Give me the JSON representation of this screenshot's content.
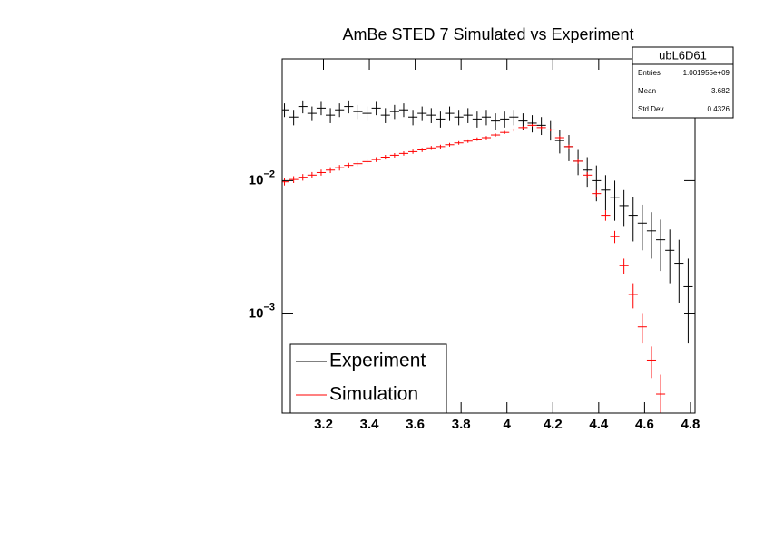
{
  "chart_data": {
    "type": "errorbar",
    "title": "AmBe STED 7 Simulated vs Experiment",
    "log_y": true,
    "legend_position": "bottom-left",
    "x": [
      3.03,
      3.07,
      3.11,
      3.15,
      3.19,
      3.23,
      3.27,
      3.31,
      3.35,
      3.39,
      3.43,
      3.47,
      3.51,
      3.55,
      3.59,
      3.63,
      3.67,
      3.71,
      3.75,
      3.79,
      3.83,
      3.87,
      3.91,
      3.95,
      3.99,
      4.03,
      4.07,
      4.11,
      4.15,
      4.19,
      4.23,
      4.27,
      4.31,
      4.35,
      4.39,
      4.43,
      4.47,
      4.51,
      4.55,
      4.59,
      4.63,
      4.67,
      4.71,
      4.75,
      4.79
    ],
    "series": [
      {
        "name": "Experiment",
        "color": "#000000",
        "values": [
          0.034,
          0.03,
          0.036,
          0.032,
          0.035,
          0.031,
          0.034,
          0.036,
          0.033,
          0.032,
          0.035,
          0.031,
          0.033,
          0.034,
          0.03,
          0.032,
          0.031,
          0.029,
          0.032,
          0.03,
          0.031,
          0.029,
          0.03,
          0.028,
          0.029,
          0.03,
          0.028,
          0.027,
          0.026,
          0.024,
          0.02,
          0.018,
          0.014,
          0.012,
          0.01,
          0.0085,
          0.0075,
          0.0065,
          0.0055,
          0.0048,
          0.0042,
          0.0036,
          0.003,
          0.0024,
          0.0016
        ],
        "errors": [
          0.004,
          0.004,
          0.004,
          0.004,
          0.004,
          0.004,
          0.004,
          0.004,
          0.004,
          0.004,
          0.004,
          0.004,
          0.004,
          0.004,
          0.004,
          0.004,
          0.004,
          0.004,
          0.004,
          0.004,
          0.004,
          0.004,
          0.004,
          0.004,
          0.004,
          0.004,
          0.004,
          0.004,
          0.004,
          0.004,
          0.004,
          0.004,
          0.003,
          0.003,
          0.003,
          0.0025,
          0.0025,
          0.002,
          0.002,
          0.0018,
          0.0016,
          0.0015,
          0.0013,
          0.0012,
          0.001
        ]
      },
      {
        "name": "Simulation",
        "color": "#ff0000",
        "values": [
          0.0098,
          0.0102,
          0.0106,
          0.011,
          0.0115,
          0.012,
          0.0125,
          0.013,
          0.0134,
          0.0139,
          0.0144,
          0.015,
          0.0155,
          0.016,
          0.0165,
          0.017,
          0.0176,
          0.018,
          0.0186,
          0.0192,
          0.0198,
          0.0205,
          0.021,
          0.022,
          0.023,
          0.024,
          0.025,
          0.026,
          0.025,
          0.024,
          0.021,
          0.018,
          0.014,
          0.011,
          0.008,
          0.0055,
          0.0038,
          0.0023,
          0.0014,
          0.0008,
          0.00045,
          0.00025,
          null,
          null,
          null
        ],
        "errors": [
          0.0006,
          0.0006,
          0.0006,
          0.0006,
          0.0006,
          0.0006,
          0.0006,
          0.0006,
          0.0006,
          0.0006,
          0.0006,
          0.0006,
          0.0006,
          0.0006,
          0.0006,
          0.0006,
          0.0006,
          0.0006,
          0.0006,
          0.0006,
          0.0006,
          0.0006,
          0.0006,
          0.0006,
          0.0006,
          0.0006,
          0.0006,
          0.0006,
          0.0006,
          0.0006,
          0.0006,
          0.0006,
          0.0006,
          0.0006,
          0.0005,
          0.0005,
          0.0004,
          0.0003,
          0.0003,
          0.0002,
          0.00012,
          0.0001,
          null,
          null,
          null
        ]
      }
    ],
    "xlim": [
      3.02,
      4.82
    ],
    "xticks": [
      3.2,
      3.4,
      3.6,
      3.8,
      4,
      4.2,
      4.4,
      4.6,
      4.8
    ],
    "ylim": [
      0.00018,
      0.082
    ],
    "yticks": [
      {
        "value": 0.01,
        "label": "10−2"
      },
      {
        "value": 0.001,
        "label": "10−3"
      }
    ],
    "stats": {
      "title": "ubL6D61",
      "rows": [
        {
          "label": "Entries",
          "value": "1.001955e+09"
        },
        {
          "label": "Mean",
          "value": 3.682
        },
        {
          "label": "Std Dev",
          "value": 0.4326
        }
      ]
    }
  }
}
